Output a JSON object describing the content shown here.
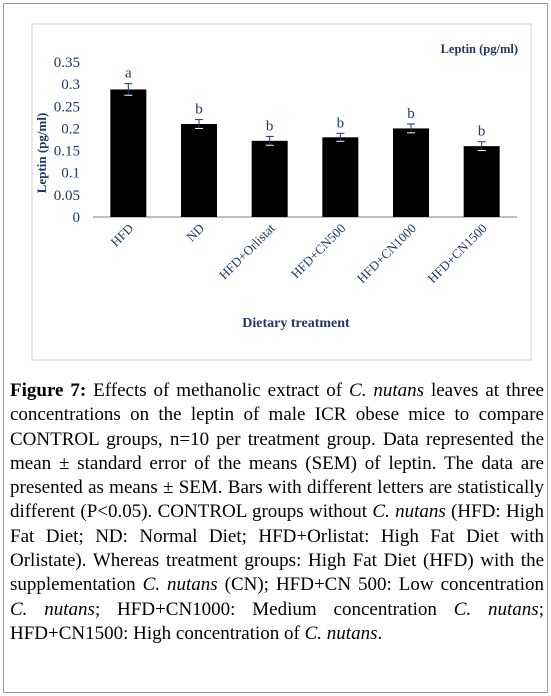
{
  "chart_data": {
    "type": "bar",
    "legend": "Leptin  (pg/ml)",
    "ylabel": "Leptin (pg/ml)",
    "xlabel": "Dietary treatment",
    "ylim": [
      0,
      0.35
    ],
    "yticks": [
      "0.35",
      "0.3",
      "0.25",
      "0.2",
      "0.15",
      "0.1",
      "0.05",
      "0"
    ],
    "ytick_values": [
      0.35,
      0.3,
      0.25,
      0.2,
      0.15,
      0.1,
      0.05,
      0
    ],
    "categories": [
      "HFD",
      "ND",
      "HFD+Orlistat",
      "HFD+CN500",
      "HFD+CN1000",
      "HFD+CN1500"
    ],
    "values": [
      0.288,
      0.21,
      0.172,
      0.18,
      0.2,
      0.16
    ],
    "errors": [
      0.013,
      0.01,
      0.01,
      0.009,
      0.01,
      0.01
    ],
    "letters": [
      "a",
      "b",
      "b",
      "b",
      "b",
      "b"
    ],
    "bar_color": "#000000",
    "annotation_color": "#1f3864"
  },
  "caption": {
    "figure_label": "Figure 7:",
    "p1": " Effects of methanolic extract of ",
    "species1": "C. nutans",
    "p2": " leaves at three concentrations on the leptin of male ICR obese mice to compare CONTROL groups, n=10 per treatment group. Data represented the mean ± standard error of the means (SEM) of leptin. The data are presented as means ± SEM. Bars with different letters are statistically different (P<0.05). CONTROL groups without ",
    "species2": "C. nutans",
    "p3": " (HFD: High Fat Diet; ND: Normal Diet; HFD+Orlistat: High Fat Diet with Orlistate). Whereas treatment groups: High Fat Diet (HFD) with the supplementation ",
    "species3": "C. nutans",
    "p4": " (CN); HFD+CN 500: Low concentration ",
    "species4": "C. nutans",
    "p5": "; HFD+CN1000: Medium concentration ",
    "species5": "C. nutans",
    "p6": "; HFD+CN1500: High concentration of ",
    "species6": "C. nutans",
    "p7": "."
  }
}
